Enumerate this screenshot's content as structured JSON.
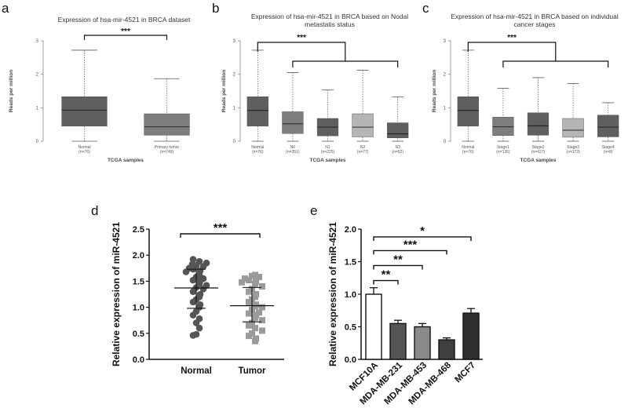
{
  "colors": {
    "box_dark": "#5f5f5f",
    "box_mid": "#7e7e7e",
    "box_light": "#b5b5b5",
    "sig_line": "#111111",
    "dot_normal": "#555555",
    "dot_tumor": "#9a9a9a",
    "bar_colors": [
      "#ffffff",
      "#555555",
      "#8a8a8a",
      "#3f3f3f",
      "#2f2f2f"
    ]
  },
  "chart_data": [
    {
      "panel": "a",
      "type": "box",
      "title": "Expression of hsa-mir-4521 in BRCA dataset",
      "xlabel": "TCGA samples",
      "ylabel": "Reads per million",
      "ylim": [
        0,
        3
      ],
      "yticks": [
        "0",
        "1",
        "2",
        "3"
      ],
      "categories": [
        "Normal",
        "Primary tumor"
      ],
      "counts": [
        "(n=76)",
        "(n=749)"
      ],
      "boxes": [
        {
          "min": 0,
          "q1": 0.45,
          "median": 0.93,
          "q3": 1.33,
          "max": 2.72,
          "shade": "dark"
        },
        {
          "min": 0,
          "q1": 0.18,
          "median": 0.43,
          "q3": 0.82,
          "max": 1.87,
          "shade": "mid"
        }
      ],
      "annotation": "***"
    },
    {
      "panel": "b",
      "type": "box",
      "title": [
        "Expression of hsa-mir-4521 in BRCA based on Nodal",
        "metastatis status"
      ],
      "xlabel": "TCGA samples",
      "ylabel": "Reads per million",
      "ylim": [
        0,
        3
      ],
      "yticks": [
        "0",
        "1",
        "2",
        "3"
      ],
      "categories": [
        "Normal",
        "N0",
        "N1",
        "N2",
        "N3"
      ],
      "counts": [
        "(n=76)",
        "(n=351)",
        "(n=225)",
        "(n=77)",
        "(n=52)"
      ],
      "boxes": [
        {
          "min": 0,
          "q1": 0.45,
          "median": 0.92,
          "q3": 1.33,
          "max": 2.72,
          "shade": "dark"
        },
        {
          "min": 0,
          "q1": 0.23,
          "median": 0.52,
          "q3": 0.88,
          "max": 2.05,
          "shade": "mid"
        },
        {
          "min": 0,
          "q1": 0.16,
          "median": 0.42,
          "q3": 0.68,
          "max": 1.53,
          "shade": "dark"
        },
        {
          "min": 0,
          "q1": 0.13,
          "median": 0.42,
          "q3": 0.82,
          "max": 2.12,
          "shade": "light"
        },
        {
          "min": 0,
          "q1": 0.1,
          "median": 0.22,
          "q3": 0.55,
          "max": 1.32,
          "shade": "dark"
        }
      ],
      "annotation": "***"
    },
    {
      "panel": "c",
      "type": "box",
      "title": [
        "Expression of hsa-mir-4521 in BRCA based on individual",
        "cancer stages"
      ],
      "xlabel": "TCGA samples",
      "ylabel": "Reads per million",
      "ylim": [
        0,
        3
      ],
      "yticks": [
        "0",
        "1",
        "2",
        "3"
      ],
      "categories": [
        "Normal",
        "Stage1",
        "Stage2",
        "Stage3",
        "Stage4"
      ],
      "counts": [
        "(n=76)",
        "(n=135)",
        "(n=427)",
        "(n=173)",
        "(n=8)"
      ],
      "boxes": [
        {
          "min": 0,
          "q1": 0.45,
          "median": 0.92,
          "q3": 1.33,
          "max": 2.72,
          "shade": "dark"
        },
        {
          "min": 0,
          "q1": 0.17,
          "median": 0.43,
          "q3": 0.72,
          "max": 1.58,
          "shade": "mid"
        },
        {
          "min": 0,
          "q1": 0.18,
          "median": 0.46,
          "q3": 0.85,
          "max": 1.9,
          "shade": "dark"
        },
        {
          "min": 0,
          "q1": 0.12,
          "median": 0.33,
          "q3": 0.68,
          "max": 1.72,
          "shade": "light"
        },
        {
          "min": 0,
          "q1": 0.13,
          "median": 0.42,
          "q3": 0.78,
          "max": 1.15,
          "shade": "dark"
        }
      ],
      "annotation": "***"
    },
    {
      "panel": "d",
      "type": "scatter",
      "ylabel": "Relative expression of miR-4521",
      "ylim": [
        0,
        2.5
      ],
      "yticks": [
        "0.0",
        "0.5",
        "1.0",
        "1.5",
        "2.0",
        "2.5"
      ],
      "categories": [
        "Normal",
        "Tumor"
      ],
      "series": [
        {
          "values": [
            1.92,
            1.88,
            1.85,
            1.83,
            1.8,
            1.78,
            1.75,
            1.73,
            1.7,
            1.68,
            1.62,
            1.58,
            1.55,
            1.52,
            1.5,
            1.45,
            1.42,
            1.38,
            1.35,
            1.3,
            1.25,
            1.2,
            1.15,
            1.1,
            1.05,
            1.0,
            0.92,
            0.85,
            0.78,
            0.7,
            0.6,
            0.48,
            0.46
          ],
          "mean": 1.37,
          "sd_low": 0.98,
          "sd_high": 1.73
        },
        {
          "values": [
            1.62,
            1.6,
            1.58,
            1.55,
            1.52,
            1.5,
            1.48,
            1.45,
            1.4,
            1.35,
            1.3,
            1.25,
            1.2,
            1.15,
            1.1,
            1.05,
            1.02,
            1.0,
            0.95,
            0.9,
            0.88,
            0.85,
            0.8,
            0.75,
            0.7,
            0.65,
            0.6,
            0.55,
            0.5,
            0.45,
            0.4,
            0.35
          ],
          "mean": 1.03,
          "sd_low": 0.72,
          "sd_high": 1.38
        }
      ],
      "annotation": "***"
    },
    {
      "panel": "e",
      "type": "bar",
      "ylabel": "Relative expression of miR-4521",
      "ylim": [
        0,
        2.0
      ],
      "yticks": [
        "0.0",
        "0.5",
        "1.0",
        "1.5",
        "2.0"
      ],
      "categories": [
        "MCF10A",
        "MDA-MB-231",
        "MDA-MB-453",
        "MDA-MB-468",
        "MCF7"
      ],
      "values": [
        1.0,
        0.55,
        0.5,
        0.3,
        0.71
      ],
      "errors": [
        0.1,
        0.05,
        0.05,
        0.03,
        0.07
      ],
      "annotations": [
        {
          "from": 0,
          "to": 4,
          "y": 1.88,
          "text": "*"
        },
        {
          "from": 0,
          "to": 3,
          "y": 1.67,
          "text": "***"
        },
        {
          "from": 0,
          "to": 2,
          "y": 1.44,
          "text": "**"
        },
        {
          "from": 0,
          "to": 1,
          "y": 1.21,
          "text": "**"
        }
      ]
    }
  ]
}
